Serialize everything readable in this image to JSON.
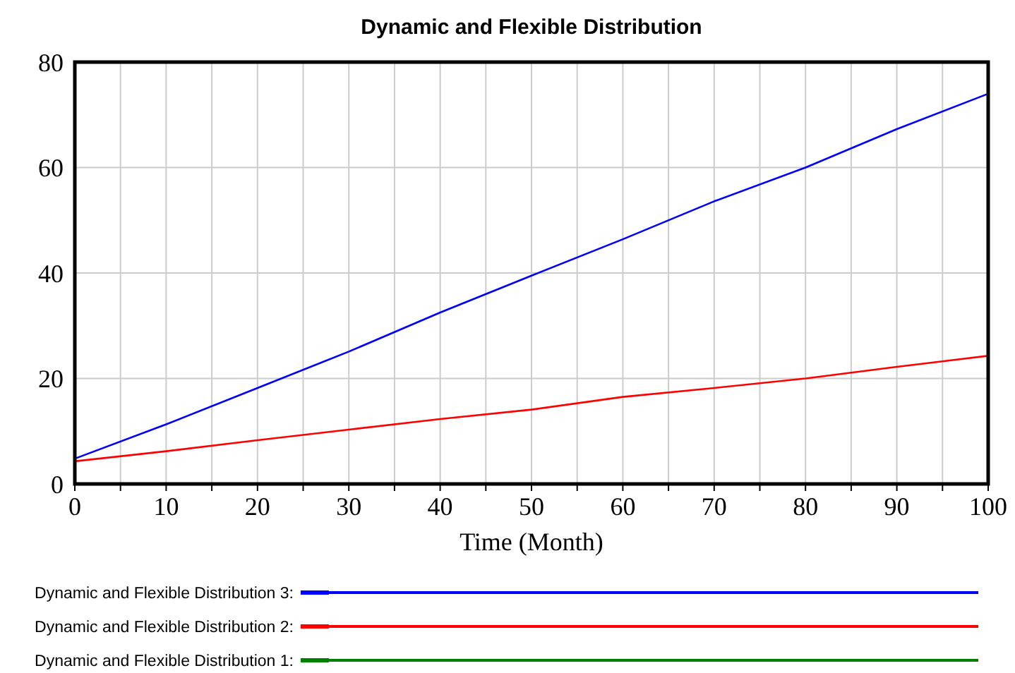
{
  "chart_data": {
    "type": "line",
    "title": "Dynamic and Flexible Distribution",
    "xlabel": "Time (Month)",
    "x": [
      0,
      10,
      20,
      30,
      40,
      50,
      60,
      70,
      80,
      90,
      100
    ],
    "series": [
      {
        "name": "Dynamic and Flexible Distribution 3:",
        "color": "#0000ff",
        "values": [
          4.8,
          11.3,
          18.2,
          25.1,
          32.5,
          39.5,
          46.4,
          53.6,
          60,
          67.3,
          74
        ]
      },
      {
        "name": "Dynamic and Flexible Distribution 2:",
        "color": "#ff0000",
        "values": [
          4.3,
          6.2,
          8.3,
          10.3,
          12.3,
          14.1,
          16.5,
          18.2,
          20,
          22.2,
          24.3
        ]
      },
      {
        "name": "Dynamic and Flexible Distribution 1:",
        "color": "#008000",
        "values": [
          null,
          null,
          null,
          null,
          null,
          null,
          null,
          null,
          null,
          null,
          null
        ]
      }
    ],
    "xlim": [
      0,
      100
    ],
    "xticks": [
      0,
      {
        "value": 5,
        "label": null
      },
      10,
      {
        "value": 15,
        "label": null
      },
      20,
      {
        "value": 25,
        "label": null
      },
      30,
      {
        "value": 35,
        "label": null
      },
      40,
      {
        "value": 45,
        "label": null
      },
      50,
      {
        "value": 55,
        "label": null
      },
      60,
      {
        "value": 65,
        "label": null
      },
      70,
      {
        "value": 75,
        "label": null
      },
      80,
      {
        "value": 85,
        "label": null
      },
      90,
      {
        "value": 95,
        "label": null
      },
      100
    ],
    "ylim": [
      0,
      80
    ],
    "yticks": [
      0,
      20,
      40,
      60,
      80
    ],
    "grid": true,
    "legend": "bottom",
    "marker": "none",
    "line_style": "solid"
  }
}
